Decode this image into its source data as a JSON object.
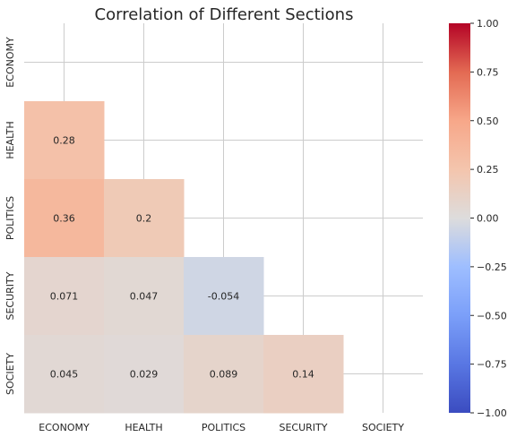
{
  "chart_data": {
    "type": "heatmap",
    "title": "Correlation of Different Sections",
    "xlabel": "",
    "ylabel": "",
    "categories": [
      "ECONOMY",
      "HEALTH",
      "POLITICS",
      "SECURITY",
      "SOCIETY"
    ],
    "mask": "upper-triangle-and-diagonal",
    "values": [
      [
        null,
        null,
        null,
        null,
        null
      ],
      [
        0.28,
        null,
        null,
        null,
        null
      ],
      [
        0.36,
        0.2,
        null,
        null,
        null
      ],
      [
        0.071,
        0.047,
        -0.054,
        null,
        null
      ],
      [
        0.045,
        0.029,
        0.089,
        0.14,
        null
      ]
    ],
    "labels": [
      [
        null,
        null,
        null,
        null,
        null
      ],
      [
        "0.28",
        null,
        null,
        null,
        null
      ],
      [
        "0.36",
        "0.2",
        null,
        null,
        null
      ],
      [
        "0.071",
        "0.047",
        "-0.054",
        null,
        null
      ],
      [
        "0.045",
        "0.029",
        "0.089",
        "0.14",
        null
      ]
    ],
    "colorbar": {
      "colormap": "coolwarm",
      "range": [
        -1.0,
        1.0
      ],
      "ticks": [
        1.0,
        0.75,
        0.5,
        0.25,
        0.0,
        -0.25,
        -0.5,
        -0.75,
        -1.0
      ],
      "tick_labels": [
        "1.00",
        "0.75",
        "0.50",
        "0.25",
        "0.00",
        "−0.25",
        "−0.50",
        "−0.75",
        "−1.00"
      ]
    },
    "grid": true
  }
}
